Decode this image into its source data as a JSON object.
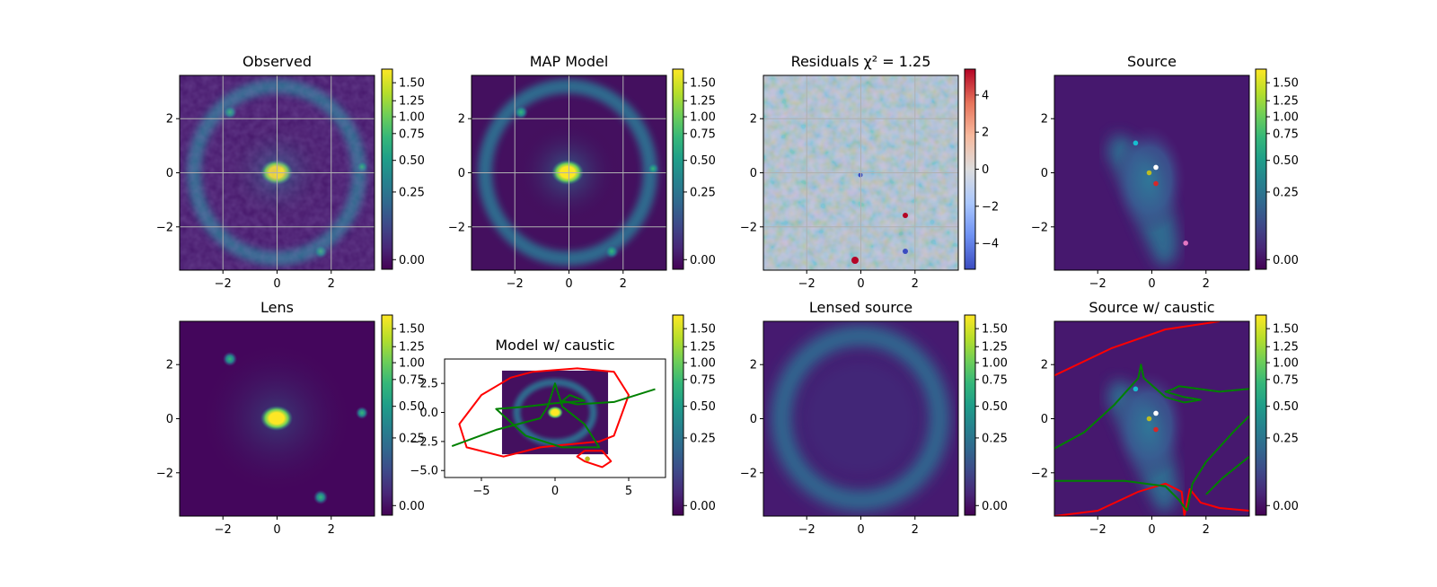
{
  "colors": {
    "viridis": [
      "#440154",
      "#482878",
      "#3e4989",
      "#31688e",
      "#26828e",
      "#1f9e89",
      "#35b779",
      "#6ece58",
      "#b5de2b",
      "#fde725"
    ],
    "diverging": [
      "#3b4cc0",
      "#6f92f3",
      "#aac7fd",
      "#dddddd",
      "#f7b89c",
      "#e7745b",
      "#b40426"
    ],
    "critical_curve": "#ff0000",
    "caustic": "#008000",
    "image_points": [
      "#17becf",
      "#bcbd22",
      "#ffffff",
      "#d62728",
      "#e377c2"
    ]
  },
  "chart_data": [
    {
      "type": "heatmap",
      "title": "Observed",
      "xlim": [
        -3.6,
        3.6
      ],
      "ylim": [
        -3.6,
        3.6
      ],
      "xticks": [
        -2,
        0,
        2
      ],
      "yticks": [
        -2,
        0,
        2
      ],
      "grid": true,
      "colorbar": {
        "range": [
          -0.05,
          1.65
        ],
        "ticks": [
          1.5,
          1.25,
          1.0,
          0.75,
          0.5,
          0.25,
          0.0
        ],
        "tick_labels": [
          "1.50",
          "1.25",
          "1.00",
          "0.75",
          "0.50",
          "0.25",
          "0.00"
        ]
      }
    },
    {
      "type": "heatmap",
      "title": "MAP Model",
      "xlim": [
        -3.6,
        3.6
      ],
      "ylim": [
        -3.6,
        3.6
      ],
      "xticks": [
        -2,
        0,
        2
      ],
      "yticks": [
        -2,
        0,
        2
      ],
      "grid": true,
      "colorbar": {
        "range": [
          -0.05,
          1.65
        ],
        "ticks": [
          1.5,
          1.25,
          1.0,
          0.75,
          0.5,
          0.25,
          0.0
        ],
        "tick_labels": [
          "1.50",
          "1.25",
          "1.00",
          "0.75",
          "0.50",
          "0.25",
          "0.00"
        ]
      }
    },
    {
      "type": "heatmap",
      "title": "Residuals χ² = 1.25",
      "xlim": [
        -3.6,
        3.6
      ],
      "ylim": [
        -3.6,
        3.6
      ],
      "xticks": [
        -2,
        0,
        2
      ],
      "yticks": [
        -2,
        0,
        2
      ],
      "grid": true,
      "colorbar": {
        "range": [
          -5.4,
          5.4
        ],
        "ticks": [
          4,
          2,
          0,
          -2,
          -4
        ],
        "tick_labels": [
          "4",
          "2",
          "0",
          "−2",
          "−4"
        ]
      }
    },
    {
      "type": "heatmap",
      "title": "Source",
      "xlim": [
        -3.6,
        3.6
      ],
      "ylim": [
        -3.6,
        3.6
      ],
      "xticks": [
        -2,
        0,
        2
      ],
      "yticks": [
        -2,
        0,
        2
      ],
      "grid": false,
      "points": [
        {
          "x": -0.6,
          "y": 1.1,
          "color": "#17becf"
        },
        {
          "x": -0.1,
          "y": 0.0,
          "color": "#bcbd22"
        },
        {
          "x": 0.15,
          "y": 0.2,
          "color": "#ffffff"
        },
        {
          "x": 0.15,
          "y": -0.4,
          "color": "#d62728"
        },
        {
          "x": 1.25,
          "y": -2.6,
          "color": "#e377c2"
        }
      ],
      "colorbar": {
        "range": [
          -0.05,
          1.65
        ],
        "ticks": [
          1.5,
          1.25,
          1.0,
          0.75,
          0.5,
          0.25,
          0.0
        ],
        "tick_labels": [
          "1.50",
          "1.25",
          "1.00",
          "0.75",
          "0.50",
          "0.25",
          "0.00"
        ]
      }
    },
    {
      "type": "heatmap",
      "title": "Lens",
      "xlim": [
        -3.6,
        3.6
      ],
      "ylim": [
        -3.6,
        3.6
      ],
      "xticks": [
        -2,
        0,
        2
      ],
      "yticks": [
        -2,
        0,
        2
      ],
      "grid": false,
      "colorbar": {
        "range": [
          -0.05,
          1.65
        ],
        "ticks": [
          1.5,
          1.25,
          1.0,
          0.75,
          0.5,
          0.25,
          0.0
        ],
        "tick_labels": [
          "1.50",
          "1.25",
          "1.00",
          "0.75",
          "0.50",
          "0.25",
          "0.00"
        ]
      }
    },
    {
      "type": "heatmap",
      "title": "Model w/ caustic",
      "xlim": [
        -7.5,
        7.5
      ],
      "ylim": [
        -5.6,
        4.6
      ],
      "xticks": [
        -5,
        0,
        5
      ],
      "yticks": [
        2.5,
        0.0,
        -2.5,
        -5.0
      ],
      "xtick_labels": [
        "−5",
        "0",
        "5"
      ],
      "ytick_labels": [
        "2.5",
        "0.0",
        "−2.5",
        "−5.0"
      ],
      "grid": false,
      "image_extent": [
        -3.6,
        3.6,
        -3.6,
        3.6
      ],
      "critical_curve": [
        [
          -1.5,
          3.5
        ],
        [
          1.5,
          3.8
        ],
        [
          4.0,
          3.5
        ],
        [
          5.0,
          1.5
        ],
        [
          4.0,
          -2.0
        ],
        [
          3.0,
          -2.5
        ],
        [
          0.5,
          -2.8
        ],
        [
          -1.0,
          -3.0
        ],
        [
          -3.5,
          -3.8
        ],
        [
          -6.0,
          -3.0
        ],
        [
          -6.5,
          -1.0
        ],
        [
          -5.0,
          1.5
        ],
        [
          -3.0,
          3.0
        ],
        [
          -1.5,
          3.5
        ]
      ],
      "critical_curve_2": [
        [
          2.0,
          -3.3
        ],
        [
          3.2,
          -3.3
        ],
        [
          3.8,
          -4.2
        ],
        [
          3.2,
          -4.7
        ],
        [
          2.0,
          -4.2
        ],
        [
          1.5,
          -3.8
        ],
        [
          2.0,
          -3.3
        ]
      ],
      "caustic": [
        [
          -7.0,
          -2.9
        ],
        [
          -4.0,
          -1.5
        ],
        [
          -1.0,
          -0.5
        ],
        [
          -0.5,
          0.5
        ],
        [
          0.0,
          2.5
        ],
        [
          0.5,
          0.5
        ],
        [
          2.0,
          -1.0
        ],
        [
          3.0,
          -3.0
        ],
        [
          0.5,
          -3.0
        ],
        [
          -2.0,
          -2.0
        ],
        [
          -4.0,
          0.3
        ],
        [
          -2.0,
          0.5
        ],
        [
          0.0,
          0.8
        ],
        [
          2.0,
          1.0
        ],
        [
          1.0,
          1.5
        ],
        [
          0.5,
          1.0
        ],
        [
          1.5,
          0.7
        ],
        [
          4.0,
          0.9
        ],
        [
          6.8,
          2.0
        ]
      ],
      "points": [
        {
          "x": 2.2,
          "y": -4.0,
          "color": "#bcbd22"
        }
      ],
      "colorbar": {
        "range": [
          -0.05,
          1.65
        ],
        "ticks": [
          1.5,
          1.25,
          1.0,
          0.75,
          0.5,
          0.25,
          0.0
        ],
        "tick_labels": [
          "1.50",
          "1.25",
          "1.00",
          "0.75",
          "0.50",
          "0.25",
          "0.00"
        ]
      }
    },
    {
      "type": "heatmap",
      "title": "Lensed source",
      "xlim": [
        -3.6,
        3.6
      ],
      "ylim": [
        -3.6,
        3.6
      ],
      "xticks": [
        -2,
        0,
        2
      ],
      "yticks": [
        -2,
        0,
        2
      ],
      "grid": false,
      "colorbar": {
        "range": [
          -0.05,
          1.65
        ],
        "ticks": [
          1.5,
          1.25,
          1.0,
          0.75,
          0.5,
          0.25,
          0.0
        ],
        "tick_labels": [
          "1.50",
          "1.25",
          "1.00",
          "0.75",
          "0.50",
          "0.25",
          "0.00"
        ]
      }
    },
    {
      "type": "heatmap",
      "title": "Source w/ caustic",
      "xlim": [
        -3.6,
        3.6
      ],
      "ylim": [
        -3.6,
        3.6
      ],
      "xticks": [
        -2,
        0,
        2
      ],
      "yticks": [
        -2,
        0,
        2
      ],
      "grid": false,
      "points": [
        {
          "x": -0.6,
          "y": 1.1,
          "color": "#17becf"
        },
        {
          "x": -0.1,
          "y": 0.0,
          "color": "#bcbd22"
        },
        {
          "x": 0.15,
          "y": 0.2,
          "color": "#ffffff"
        },
        {
          "x": 0.15,
          "y": -0.4,
          "color": "#d62728"
        }
      ],
      "critical_curve": [
        [
          -3.6,
          1.6
        ],
        [
          -1.5,
          2.6
        ],
        [
          0.5,
          3.3
        ],
        [
          2.5,
          3.6
        ]
      ],
      "critical_curve_2": [
        [
          1.2,
          -3.6
        ],
        [
          1.4,
          -2.6
        ],
        [
          1.8,
          -3.1
        ],
        [
          2.5,
          -3.3
        ],
        [
          3.6,
          -3.4
        ]
      ],
      "critical_curve_3": [
        [
          -3.6,
          -3.6
        ],
        [
          -2.0,
          -3.4
        ],
        [
          -0.5,
          -2.7
        ],
        [
          0.5,
          -2.4
        ],
        [
          1.1,
          -2.7
        ],
        [
          1.2,
          -3.6
        ]
      ],
      "caustic": [
        [
          -3.6,
          -1.1
        ],
        [
          -2.5,
          -0.5
        ],
        [
          -1.4,
          0.5
        ],
        [
          -0.5,
          1.5
        ],
        [
          -0.4,
          2.0
        ],
        [
          -0.3,
          1.5
        ],
        [
          0.5,
          0.8
        ],
        [
          1.2,
          0.6
        ],
        [
          1.8,
          0.7
        ],
        [
          1.2,
          0.8
        ],
        [
          0.5,
          1.0
        ],
        [
          0.8,
          1.1
        ],
        [
          1.0,
          1.2
        ],
        [
          2.5,
          1.0
        ],
        [
          3.6,
          1.1
        ]
      ],
      "caustic_2": [
        [
          -3.6,
          -2.3
        ],
        [
          -1.0,
          -2.3
        ],
        [
          0.5,
          -2.5
        ],
        [
          1.0,
          -3.0
        ],
        [
          1.3,
          -3.4
        ]
      ],
      "caustic_3": [
        [
          1.3,
          -3.4
        ],
        [
          1.5,
          -2.4
        ],
        [
          2.0,
          -1.6
        ],
        [
          3.0,
          -0.5
        ],
        [
          3.6,
          0.1
        ]
      ],
      "caustic_4": [
        [
          3.6,
          -1.4
        ],
        [
          2.6,
          -2.2
        ],
        [
          2.0,
          -2.8
        ]
      ],
      "colorbar": {
        "range": [
          -0.05,
          1.65
        ],
        "ticks": [
          1.5,
          1.25,
          1.0,
          0.75,
          0.5,
          0.25,
          0.0
        ],
        "tick_labels": [
          "1.50",
          "1.25",
          "1.00",
          "0.75",
          "0.50",
          "0.25",
          "0.00"
        ]
      }
    }
  ]
}
